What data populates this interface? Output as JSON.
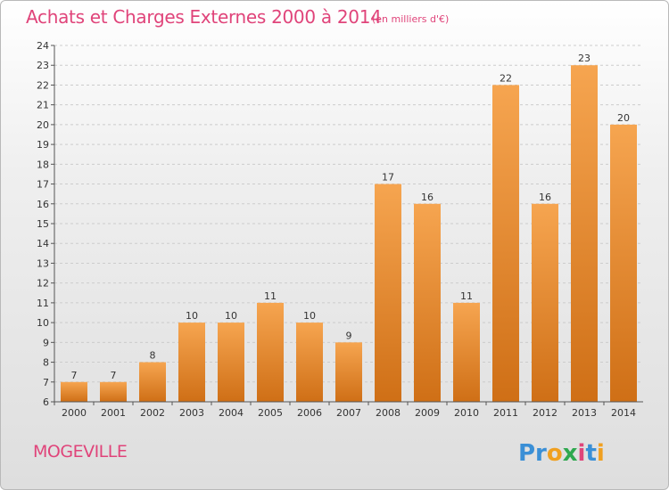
{
  "header": {
    "title": "Achats et Charges Externes 2000 à 2014",
    "subtitle": "(en milliers d'€)"
  },
  "footer": {
    "commune": "MOGEVILLE",
    "logo_text": "Proxiti"
  },
  "colors": {
    "bar_light": "#f6a550",
    "bar_dark": "#cf6f16",
    "title": "#e0447a",
    "grid": "#cccccc"
  },
  "chart_data": {
    "type": "bar",
    "categories": [
      "2000",
      "2001",
      "2002",
      "2003",
      "2004",
      "2005",
      "2006",
      "2007",
      "2008",
      "2009",
      "2010",
      "2011",
      "2012",
      "2013",
      "2014"
    ],
    "values": [
      7,
      7,
      8,
      10,
      10,
      11,
      10,
      9,
      17,
      16,
      11,
      22,
      16,
      23,
      20
    ],
    "data_labels": [
      "7",
      "7",
      "8",
      "10",
      "10",
      "11",
      "10",
      "9",
      "17",
      "16",
      "11",
      "22",
      "16",
      "23",
      "20"
    ],
    "ylim": [
      6,
      24
    ],
    "yticks": [
      6,
      7,
      8,
      9,
      10,
      11,
      12,
      13,
      14,
      15,
      16,
      17,
      18,
      19,
      20,
      21,
      22,
      23,
      24
    ],
    "grid": "horizontal dashed",
    "xlabel": "",
    "ylabel": ""
  }
}
